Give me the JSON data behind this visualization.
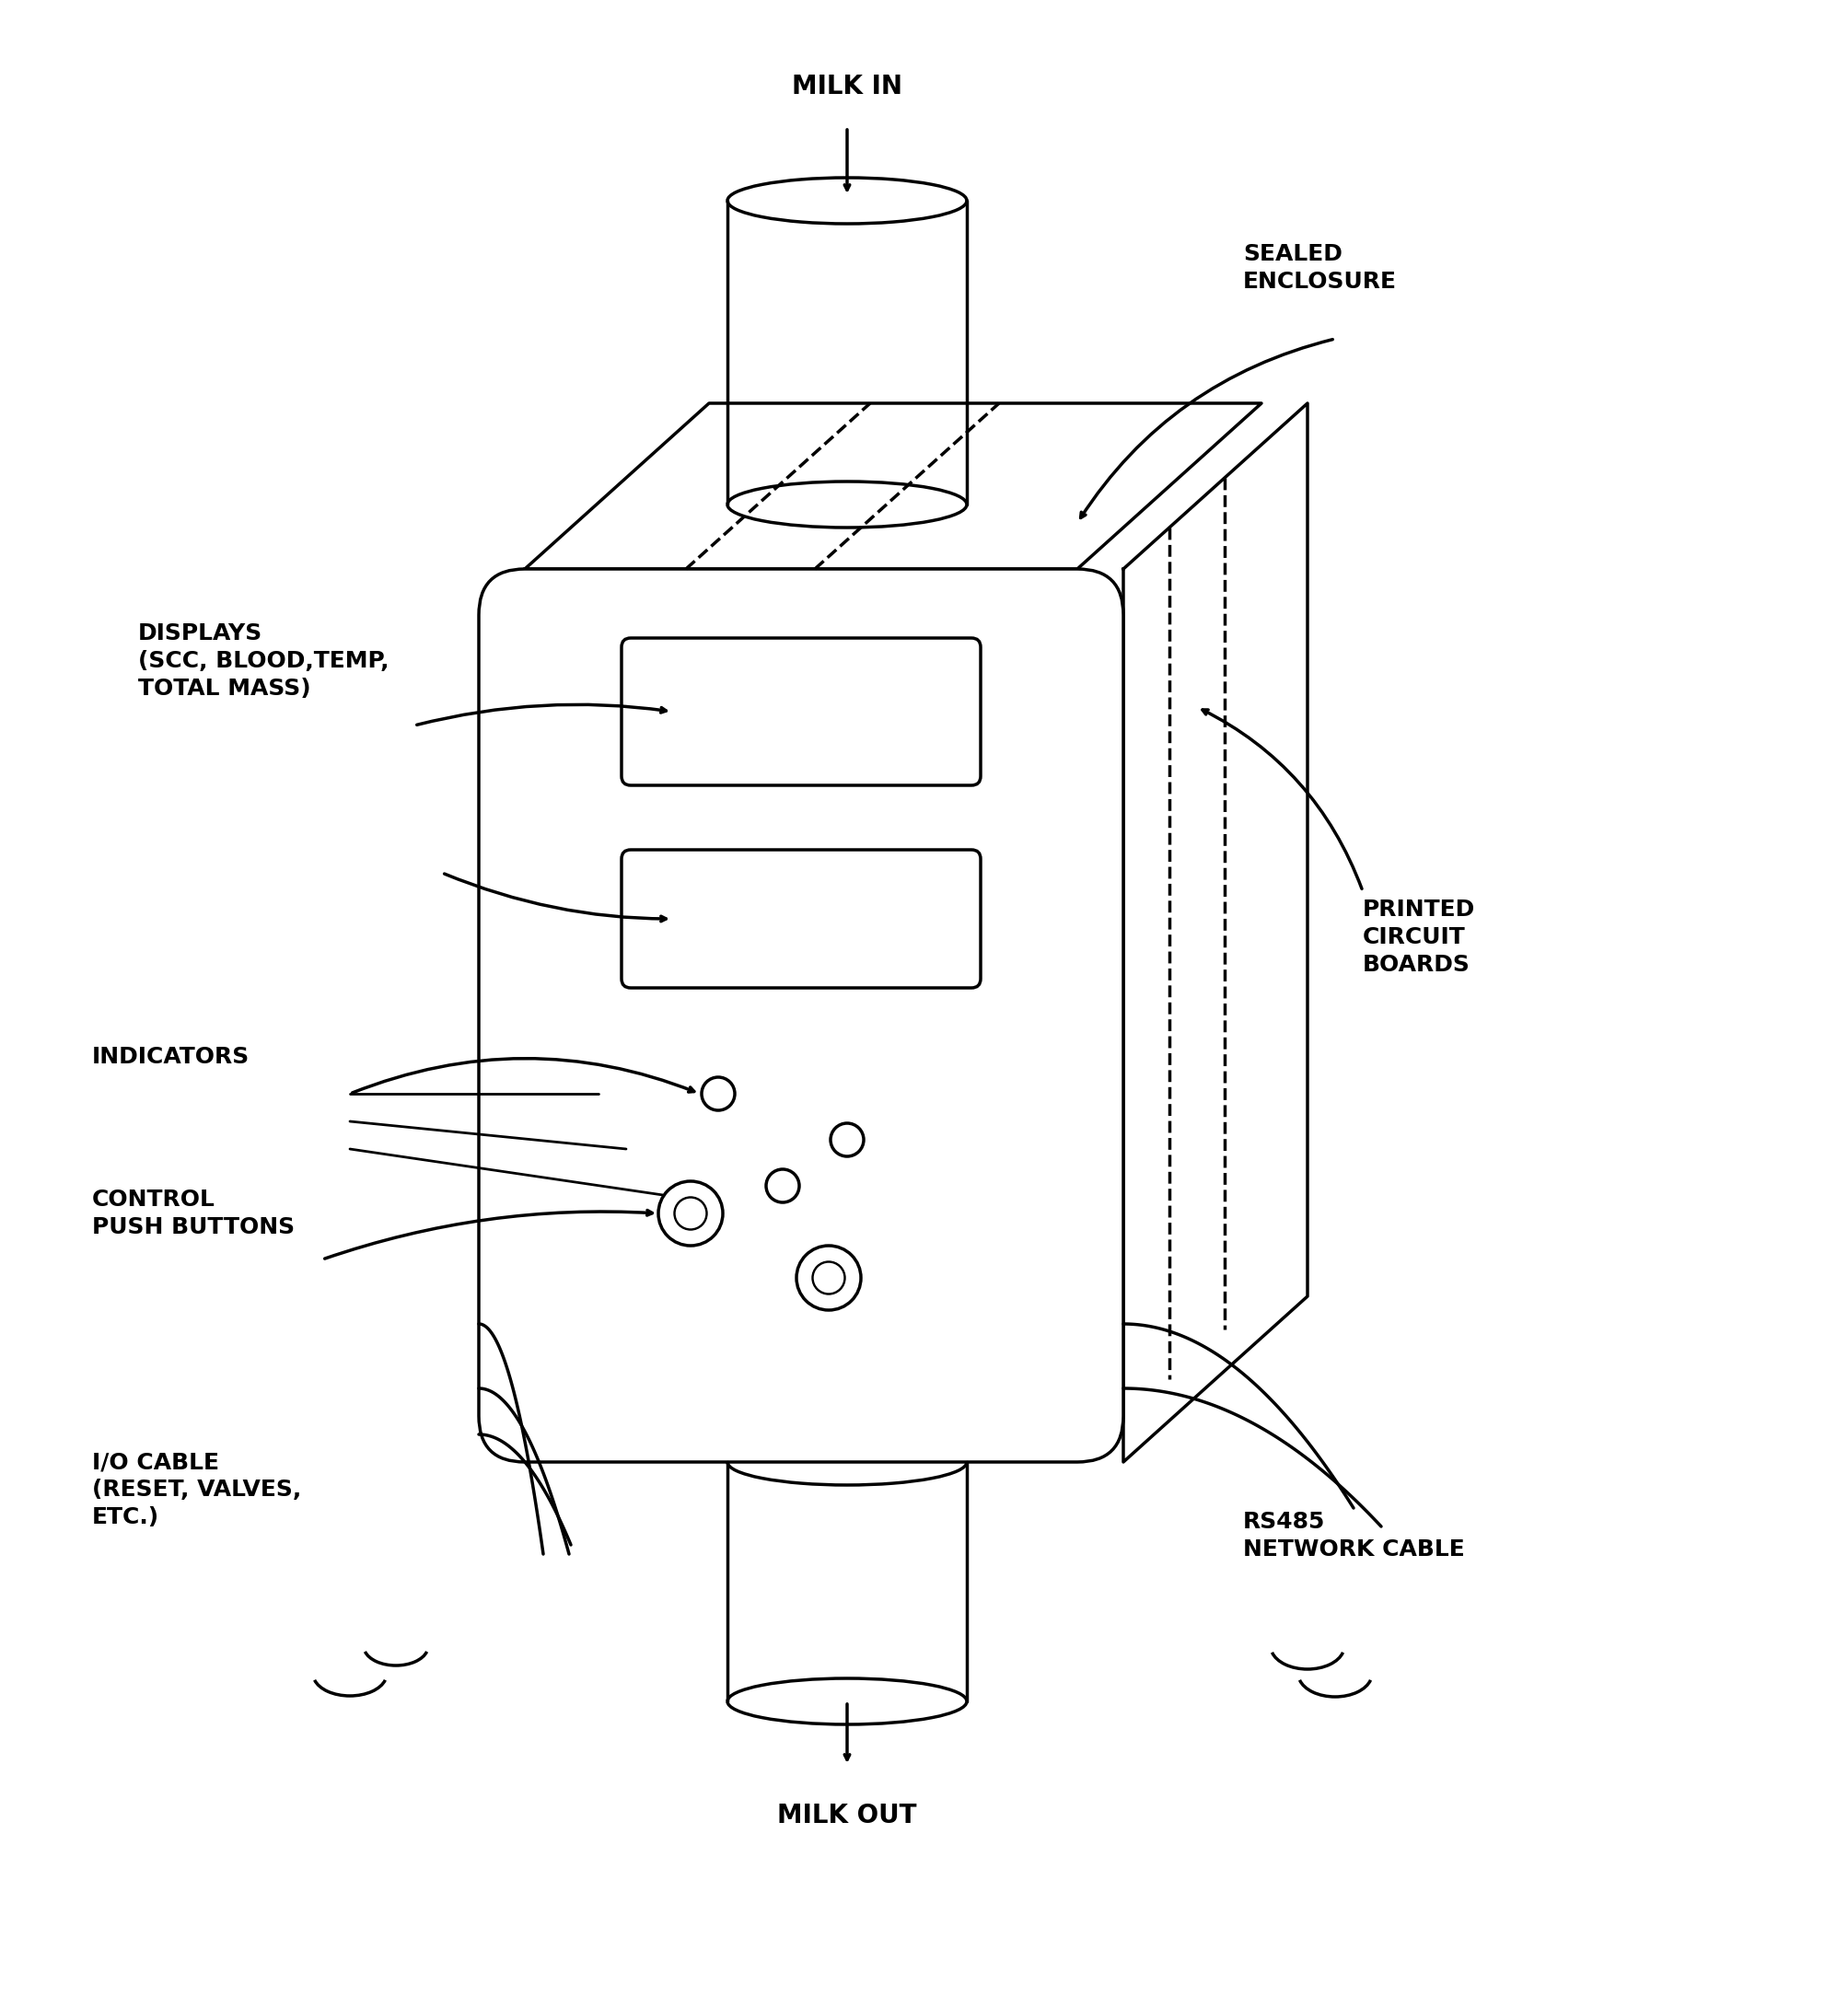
{
  "bg_color": "#ffffff",
  "line_color": "#000000",
  "line_width": 2.5,
  "labels": {
    "milk_in": "MILK IN",
    "milk_out": "MILK OUT",
    "sealed_enclosure": "SEALED\nENCLOSURE",
    "displays": "DISPLAYS\n(SCC, BLOOD,TEMP,\nTOTAL MASS)",
    "indicators": "INDICATORS",
    "control_push_buttons": "CONTROL\nPUSH BUTTONS",
    "io_cable": "I/O CABLE\n(RESET, VALVES,\nETC.)",
    "printed_circuit_boards": "PRINTED\nCIRCUIT\nBOARDS",
    "rs485": "RS485\nNETWORK CABLE"
  },
  "font_size": 18,
  "font_family": "Arial"
}
